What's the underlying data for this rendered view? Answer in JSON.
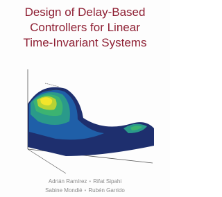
{
  "cover": {
    "title_lines": [
      "Design of Delay-Based",
      "Controllers for Linear",
      "Time-Invariant Systems"
    ],
    "authors": [
      [
        "Adrián Ramírez",
        "Rifat Sipahi"
      ],
      [
        "Sabine Mondié",
        "Rubén Garrido"
      ]
    ]
  }
}
